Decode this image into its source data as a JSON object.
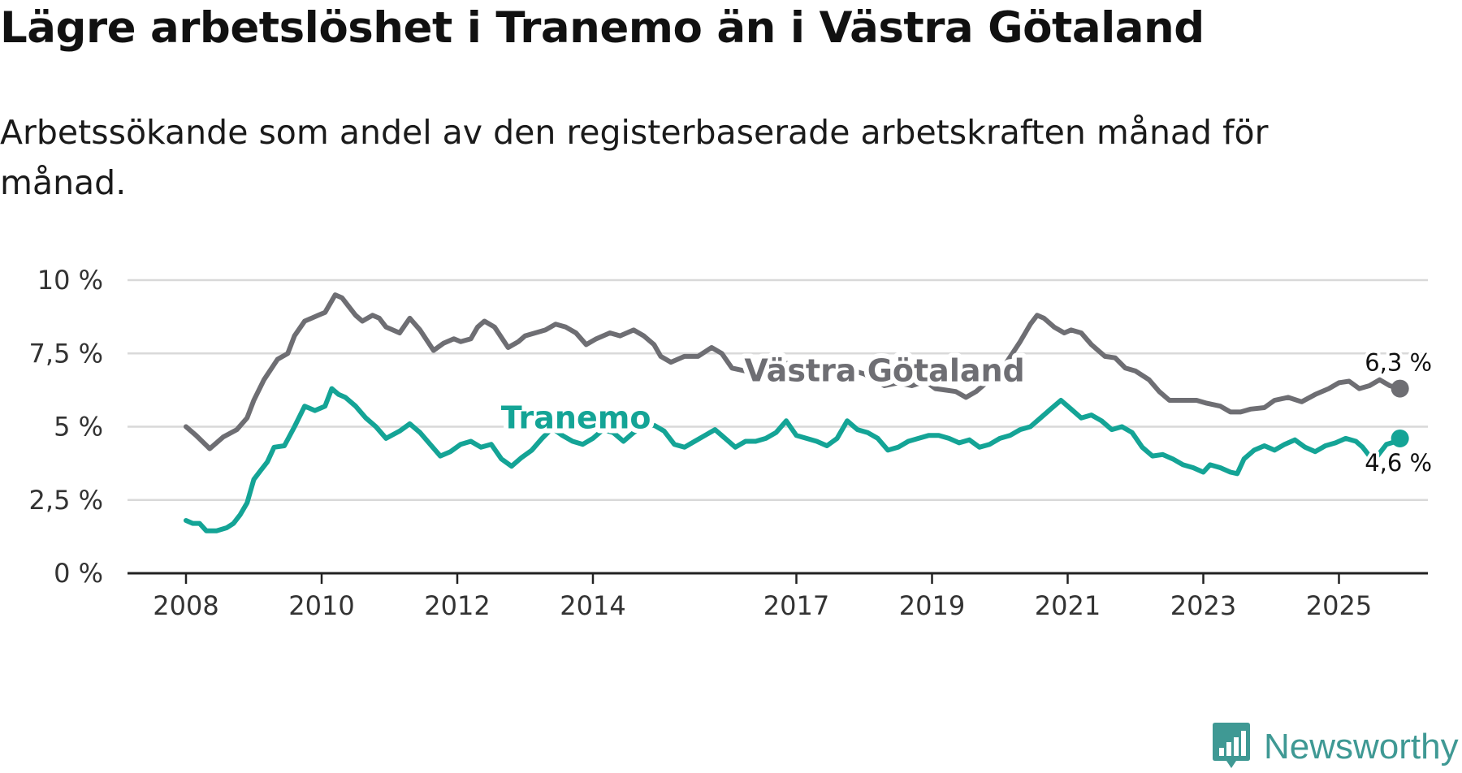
{
  "header": {
    "title": "Lägre arbetslöshet i Tranemo än i Västra Götaland",
    "subtitle": "Arbetssökande som andel av den registerbaserade arbetskraften månad för månad."
  },
  "brand": {
    "name": "Newsworthy",
    "icon": "newsworthy-logo-icon",
    "color": "#3f9994"
  },
  "chart_data": {
    "type": "line",
    "title": "Lägre arbetslöshet i Tranemo än i Västra Götaland",
    "subtitle": "Arbetssökande som andel av den registerbaserade arbetskraften månad för månad.",
    "xlabel": "",
    "ylabel": "",
    "ylim": [
      0,
      10
    ],
    "xlim": [
      2008,
      2026
    ],
    "grid": true,
    "y_ticks": [
      {
        "value": 0,
        "label": "0 %"
      },
      {
        "value": 2.5,
        "label": "2,5 %"
      },
      {
        "value": 5,
        "label": "5 %"
      },
      {
        "value": 7.5,
        "label": "7,5 %"
      },
      {
        "value": 10,
        "label": "10 %"
      }
    ],
    "x_ticks": [
      {
        "value": 2008,
        "label": "2008"
      },
      {
        "value": 2010,
        "label": "2010"
      },
      {
        "value": 2012,
        "label": "2012"
      },
      {
        "value": 2014,
        "label": "2014"
      },
      {
        "value": 2017,
        "label": "2017"
      },
      {
        "value": 2019,
        "label": "2019"
      },
      {
        "value": 2021,
        "label": "2021"
      },
      {
        "value": 2023,
        "label": "2023"
      },
      {
        "value": 2025,
        "label": "2025"
      }
    ],
    "series": [
      {
        "name": "Västra Götaland",
        "color": "#6e6e73",
        "end_label": "6,3 %",
        "label_anchor": [
          2018.3,
          6.55
        ],
        "points": [
          [
            2008.0,
            5.0
          ],
          [
            2008.15,
            4.7
          ],
          [
            2008.35,
            4.25
          ],
          [
            2008.55,
            4.65
          ],
          [
            2008.75,
            4.9
          ],
          [
            2008.9,
            5.3
          ],
          [
            2009.0,
            5.9
          ],
          [
            2009.15,
            6.6
          ],
          [
            2009.35,
            7.3
          ],
          [
            2009.5,
            7.5
          ],
          [
            2009.6,
            8.1
          ],
          [
            2009.75,
            8.6
          ],
          [
            2009.95,
            8.8
          ],
          [
            2010.05,
            8.9
          ],
          [
            2010.2,
            9.5
          ],
          [
            2010.3,
            9.4
          ],
          [
            2010.4,
            9.1
          ],
          [
            2010.5,
            8.8
          ],
          [
            2010.6,
            8.6
          ],
          [
            2010.75,
            8.8
          ],
          [
            2010.85,
            8.7
          ],
          [
            2010.95,
            8.4
          ],
          [
            2011.15,
            8.2
          ],
          [
            2011.3,
            8.7
          ],
          [
            2011.45,
            8.3
          ],
          [
            2011.65,
            7.6
          ],
          [
            2011.8,
            7.85
          ],
          [
            2011.95,
            8.0
          ],
          [
            2012.05,
            7.9
          ],
          [
            2012.2,
            8.0
          ],
          [
            2012.3,
            8.4
          ],
          [
            2012.4,
            8.6
          ],
          [
            2012.55,
            8.4
          ],
          [
            2012.75,
            7.7
          ],
          [
            2012.9,
            7.9
          ],
          [
            2013.0,
            8.1
          ],
          [
            2013.15,
            8.2
          ],
          [
            2013.3,
            8.3
          ],
          [
            2013.45,
            8.5
          ],
          [
            2013.6,
            8.4
          ],
          [
            2013.75,
            8.2
          ],
          [
            2013.9,
            7.8
          ],
          [
            2014.05,
            8.0
          ],
          [
            2014.25,
            8.2
          ],
          [
            2014.4,
            8.1
          ],
          [
            2014.6,
            8.3
          ],
          [
            2014.75,
            8.1
          ],
          [
            2014.9,
            7.8
          ],
          [
            2015.0,
            7.4
          ],
          [
            2015.15,
            7.2
          ],
          [
            2015.35,
            7.4
          ],
          [
            2015.55,
            7.4
          ],
          [
            2015.75,
            7.7
          ],
          [
            2015.9,
            7.5
          ],
          [
            2016.05,
            7.0
          ],
          [
            2016.25,
            6.9
          ],
          [
            2016.45,
            7.1
          ],
          [
            2016.6,
            7.1
          ],
          [
            2016.8,
            7.2
          ],
          [
            2016.95,
            7.1
          ],
          [
            2017.1,
            6.8
          ],
          [
            2017.25,
            6.5
          ],
          [
            2017.4,
            6.6
          ],
          [
            2017.55,
            6.75
          ],
          [
            2017.7,
            6.8
          ],
          [
            2017.85,
            6.9
          ],
          [
            2018.0,
            6.8
          ],
          [
            2018.15,
            6.6
          ],
          [
            2018.3,
            6.4
          ],
          [
            2018.5,
            6.5
          ],
          [
            2018.7,
            6.4
          ],
          [
            2018.9,
            6.55
          ],
          [
            2019.05,
            6.3
          ],
          [
            2019.2,
            6.25
          ],
          [
            2019.35,
            6.2
          ],
          [
            2019.5,
            6.0
          ],
          [
            2019.65,
            6.2
          ],
          [
            2019.8,
            6.5
          ],
          [
            2019.95,
            6.6
          ],
          [
            2020.1,
            7.2
          ],
          [
            2020.3,
            7.9
          ],
          [
            2020.45,
            8.5
          ],
          [
            2020.55,
            8.8
          ],
          [
            2020.65,
            8.7
          ],
          [
            2020.8,
            8.4
          ],
          [
            2020.95,
            8.2
          ],
          [
            2021.05,
            8.3
          ],
          [
            2021.2,
            8.2
          ],
          [
            2021.35,
            7.8
          ],
          [
            2021.55,
            7.4
          ],
          [
            2021.7,
            7.35
          ],
          [
            2021.85,
            7.0
          ],
          [
            2022.0,
            6.9
          ],
          [
            2022.2,
            6.6
          ],
          [
            2022.35,
            6.2
          ],
          [
            2022.5,
            5.9
          ],
          [
            2022.7,
            5.9
          ],
          [
            2022.9,
            5.9
          ],
          [
            2023.05,
            5.8
          ],
          [
            2023.25,
            5.7
          ],
          [
            2023.4,
            5.5
          ],
          [
            2023.55,
            5.5
          ],
          [
            2023.7,
            5.6
          ],
          [
            2023.9,
            5.65
          ],
          [
            2024.05,
            5.9
          ],
          [
            2024.25,
            6.0
          ],
          [
            2024.45,
            5.85
          ],
          [
            2024.65,
            6.1
          ],
          [
            2024.85,
            6.3
          ],
          [
            2025.0,
            6.5
          ],
          [
            2025.15,
            6.55
          ],
          [
            2025.3,
            6.3
          ],
          [
            2025.45,
            6.4
          ],
          [
            2025.6,
            6.6
          ],
          [
            2025.75,
            6.4
          ],
          [
            2025.9,
            6.3
          ]
        ]
      },
      {
        "name": "Tranemo",
        "color": "#14a496",
        "end_label": "4,6 %",
        "label_anchor": [
          2013.75,
          4.95
        ],
        "points": [
          [
            2008.0,
            1.8
          ],
          [
            2008.1,
            1.7
          ],
          [
            2008.2,
            1.7
          ],
          [
            2008.3,
            1.45
          ],
          [
            2008.45,
            1.45
          ],
          [
            2008.6,
            1.55
          ],
          [
            2008.7,
            1.7
          ],
          [
            2008.8,
            2.0
          ],
          [
            2008.9,
            2.4
          ],
          [
            2009.0,
            3.2
          ],
          [
            2009.1,
            3.5
          ],
          [
            2009.2,
            3.8
          ],
          [
            2009.3,
            4.3
          ],
          [
            2009.45,
            4.35
          ],
          [
            2009.6,
            5.0
          ],
          [
            2009.75,
            5.7
          ],
          [
            2009.9,
            5.55
          ],
          [
            2010.05,
            5.7
          ],
          [
            2010.15,
            6.3
          ],
          [
            2010.25,
            6.1
          ],
          [
            2010.35,
            6.0
          ],
          [
            2010.5,
            5.7
          ],
          [
            2010.65,
            5.3
          ],
          [
            2010.8,
            5.0
          ],
          [
            2010.95,
            4.6
          ],
          [
            2011.15,
            4.85
          ],
          [
            2011.3,
            5.1
          ],
          [
            2011.45,
            4.8
          ],
          [
            2011.6,
            4.4
          ],
          [
            2011.75,
            4.0
          ],
          [
            2011.9,
            4.15
          ],
          [
            2012.05,
            4.4
          ],
          [
            2012.2,
            4.5
          ],
          [
            2012.35,
            4.3
          ],
          [
            2012.5,
            4.4
          ],
          [
            2012.65,
            3.9
          ],
          [
            2012.8,
            3.65
          ],
          [
            2012.95,
            3.95
          ],
          [
            2013.1,
            4.2
          ],
          [
            2013.25,
            4.6
          ],
          [
            2013.4,
            4.95
          ],
          [
            2013.55,
            4.7
          ],
          [
            2013.7,
            4.5
          ],
          [
            2013.85,
            4.4
          ],
          [
            2014.0,
            4.6
          ],
          [
            2014.15,
            4.9
          ],
          [
            2014.3,
            4.8
          ],
          [
            2014.45,
            4.5
          ],
          [
            2014.6,
            4.8
          ],
          [
            2014.75,
            5.0
          ],
          [
            2014.9,
            5.05
          ],
          [
            2015.05,
            4.85
          ],
          [
            2015.2,
            4.4
          ],
          [
            2015.35,
            4.3
          ],
          [
            2015.5,
            4.5
          ],
          [
            2015.65,
            4.7
          ],
          [
            2015.8,
            4.9
          ],
          [
            2015.95,
            4.6
          ],
          [
            2016.1,
            4.3
          ],
          [
            2016.25,
            4.5
          ],
          [
            2016.4,
            4.5
          ],
          [
            2016.55,
            4.6
          ],
          [
            2016.7,
            4.8
          ],
          [
            2016.85,
            5.2
          ],
          [
            2017.0,
            4.7
          ],
          [
            2017.15,
            4.6
          ],
          [
            2017.3,
            4.5
          ],
          [
            2017.45,
            4.35
          ],
          [
            2017.6,
            4.6
          ],
          [
            2017.75,
            5.2
          ],
          [
            2017.9,
            4.9
          ],
          [
            2018.05,
            4.8
          ],
          [
            2018.2,
            4.6
          ],
          [
            2018.35,
            4.2
          ],
          [
            2018.5,
            4.3
          ],
          [
            2018.65,
            4.5
          ],
          [
            2018.8,
            4.6
          ],
          [
            2018.95,
            4.7
          ],
          [
            2019.1,
            4.7
          ],
          [
            2019.25,
            4.6
          ],
          [
            2019.4,
            4.45
          ],
          [
            2019.55,
            4.55
          ],
          [
            2019.7,
            4.3
          ],
          [
            2019.85,
            4.4
          ],
          [
            2020.0,
            4.6
          ],
          [
            2020.15,
            4.7
          ],
          [
            2020.3,
            4.9
          ],
          [
            2020.45,
            5.0
          ],
          [
            2020.6,
            5.3
          ],
          [
            2020.75,
            5.6
          ],
          [
            2020.9,
            5.9
          ],
          [
            2021.05,
            5.6
          ],
          [
            2021.2,
            5.3
          ],
          [
            2021.35,
            5.4
          ],
          [
            2021.5,
            5.2
          ],
          [
            2021.65,
            4.9
          ],
          [
            2021.8,
            5.0
          ],
          [
            2021.95,
            4.8
          ],
          [
            2022.1,
            4.3
          ],
          [
            2022.25,
            4.0
          ],
          [
            2022.4,
            4.05
          ],
          [
            2022.55,
            3.9
          ],
          [
            2022.7,
            3.7
          ],
          [
            2022.85,
            3.6
          ],
          [
            2023.0,
            3.45
          ],
          [
            2023.1,
            3.7
          ],
          [
            2023.25,
            3.6
          ],
          [
            2023.4,
            3.45
          ],
          [
            2023.5,
            3.4
          ],
          [
            2023.6,
            3.9
          ],
          [
            2023.75,
            4.2
          ],
          [
            2023.9,
            4.35
          ],
          [
            2024.05,
            4.2
          ],
          [
            2024.2,
            4.4
          ],
          [
            2024.35,
            4.55
          ],
          [
            2024.5,
            4.3
          ],
          [
            2024.65,
            4.15
          ],
          [
            2024.8,
            4.35
          ],
          [
            2024.95,
            4.45
          ],
          [
            2025.1,
            4.6
          ],
          [
            2025.25,
            4.5
          ],
          [
            2025.35,
            4.3
          ],
          [
            2025.45,
            4.0
          ],
          [
            2025.55,
            3.95
          ],
          [
            2025.7,
            4.4
          ],
          [
            2025.85,
            4.5
          ],
          [
            2025.9,
            4.6
          ]
        ]
      }
    ]
  }
}
